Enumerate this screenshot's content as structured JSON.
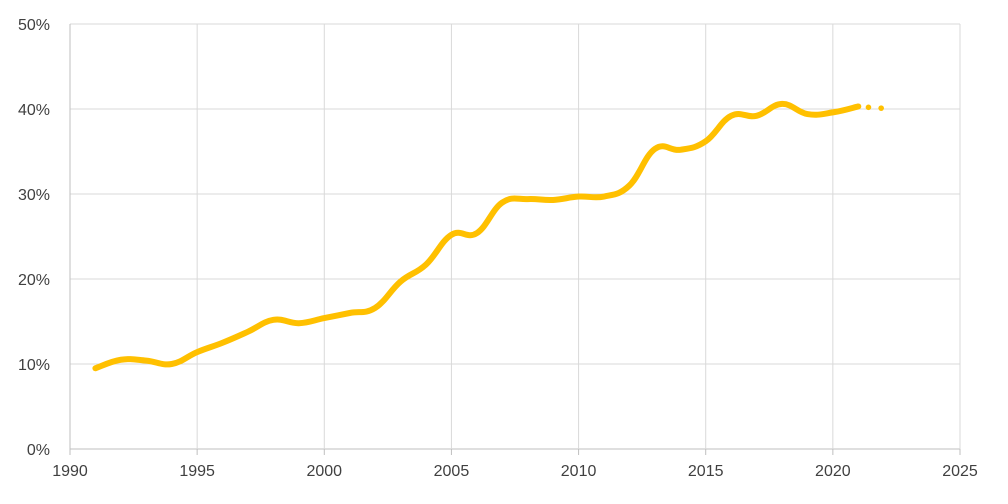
{
  "chart_data": {
    "type": "line",
    "title": "",
    "xlabel": "",
    "ylabel": "",
    "xlim": [
      1990,
      2025
    ],
    "ylim": [
      0,
      50
    ],
    "x_ticks": [
      1990,
      1995,
      2000,
      2005,
      2010,
      2015,
      2020,
      2025
    ],
    "x_tick_labels": [
      "1990",
      "1995",
      "2000",
      "2005",
      "2010",
      "2015",
      "2020",
      "2025"
    ],
    "y_ticks": [
      0,
      10,
      20,
      30,
      40,
      50
    ],
    "y_tick_labels": [
      "0%",
      "10%",
      "20%",
      "30%",
      "40%",
      "50%"
    ],
    "grid": true,
    "legend": "none",
    "series": [
      {
        "color": "#FFC000",
        "x": [
          1991,
          1992,
          1993,
          1994,
          1995,
          1996,
          1997,
          1998,
          1999,
          2000,
          2001,
          2002,
          2003,
          2004,
          2005,
          2006,
          2007,
          2008,
          2009,
          2010,
          2011,
          2012,
          2013,
          2014,
          2015,
          2016,
          2017,
          2018,
          2019,
          2020,
          2021
        ],
        "y": [
          9.5,
          10.5,
          10.4,
          10.0,
          11.4,
          12.5,
          13.8,
          15.2,
          14.8,
          15.4,
          16.0,
          16.6,
          19.7,
          21.7,
          25.2,
          25.4,
          29.0,
          29.4,
          29.3,
          29.7,
          29.7,
          31.0,
          35.3,
          35.2,
          36.2,
          39.2,
          39.2,
          40.6,
          39.4,
          39.6,
          40.3
        ],
        "projection": {
          "style": "dotted",
          "x": [
            2021,
            2021.4,
            2021.9
          ],
          "y": [
            40.3,
            40.2,
            40.1
          ]
        }
      }
    ]
  }
}
